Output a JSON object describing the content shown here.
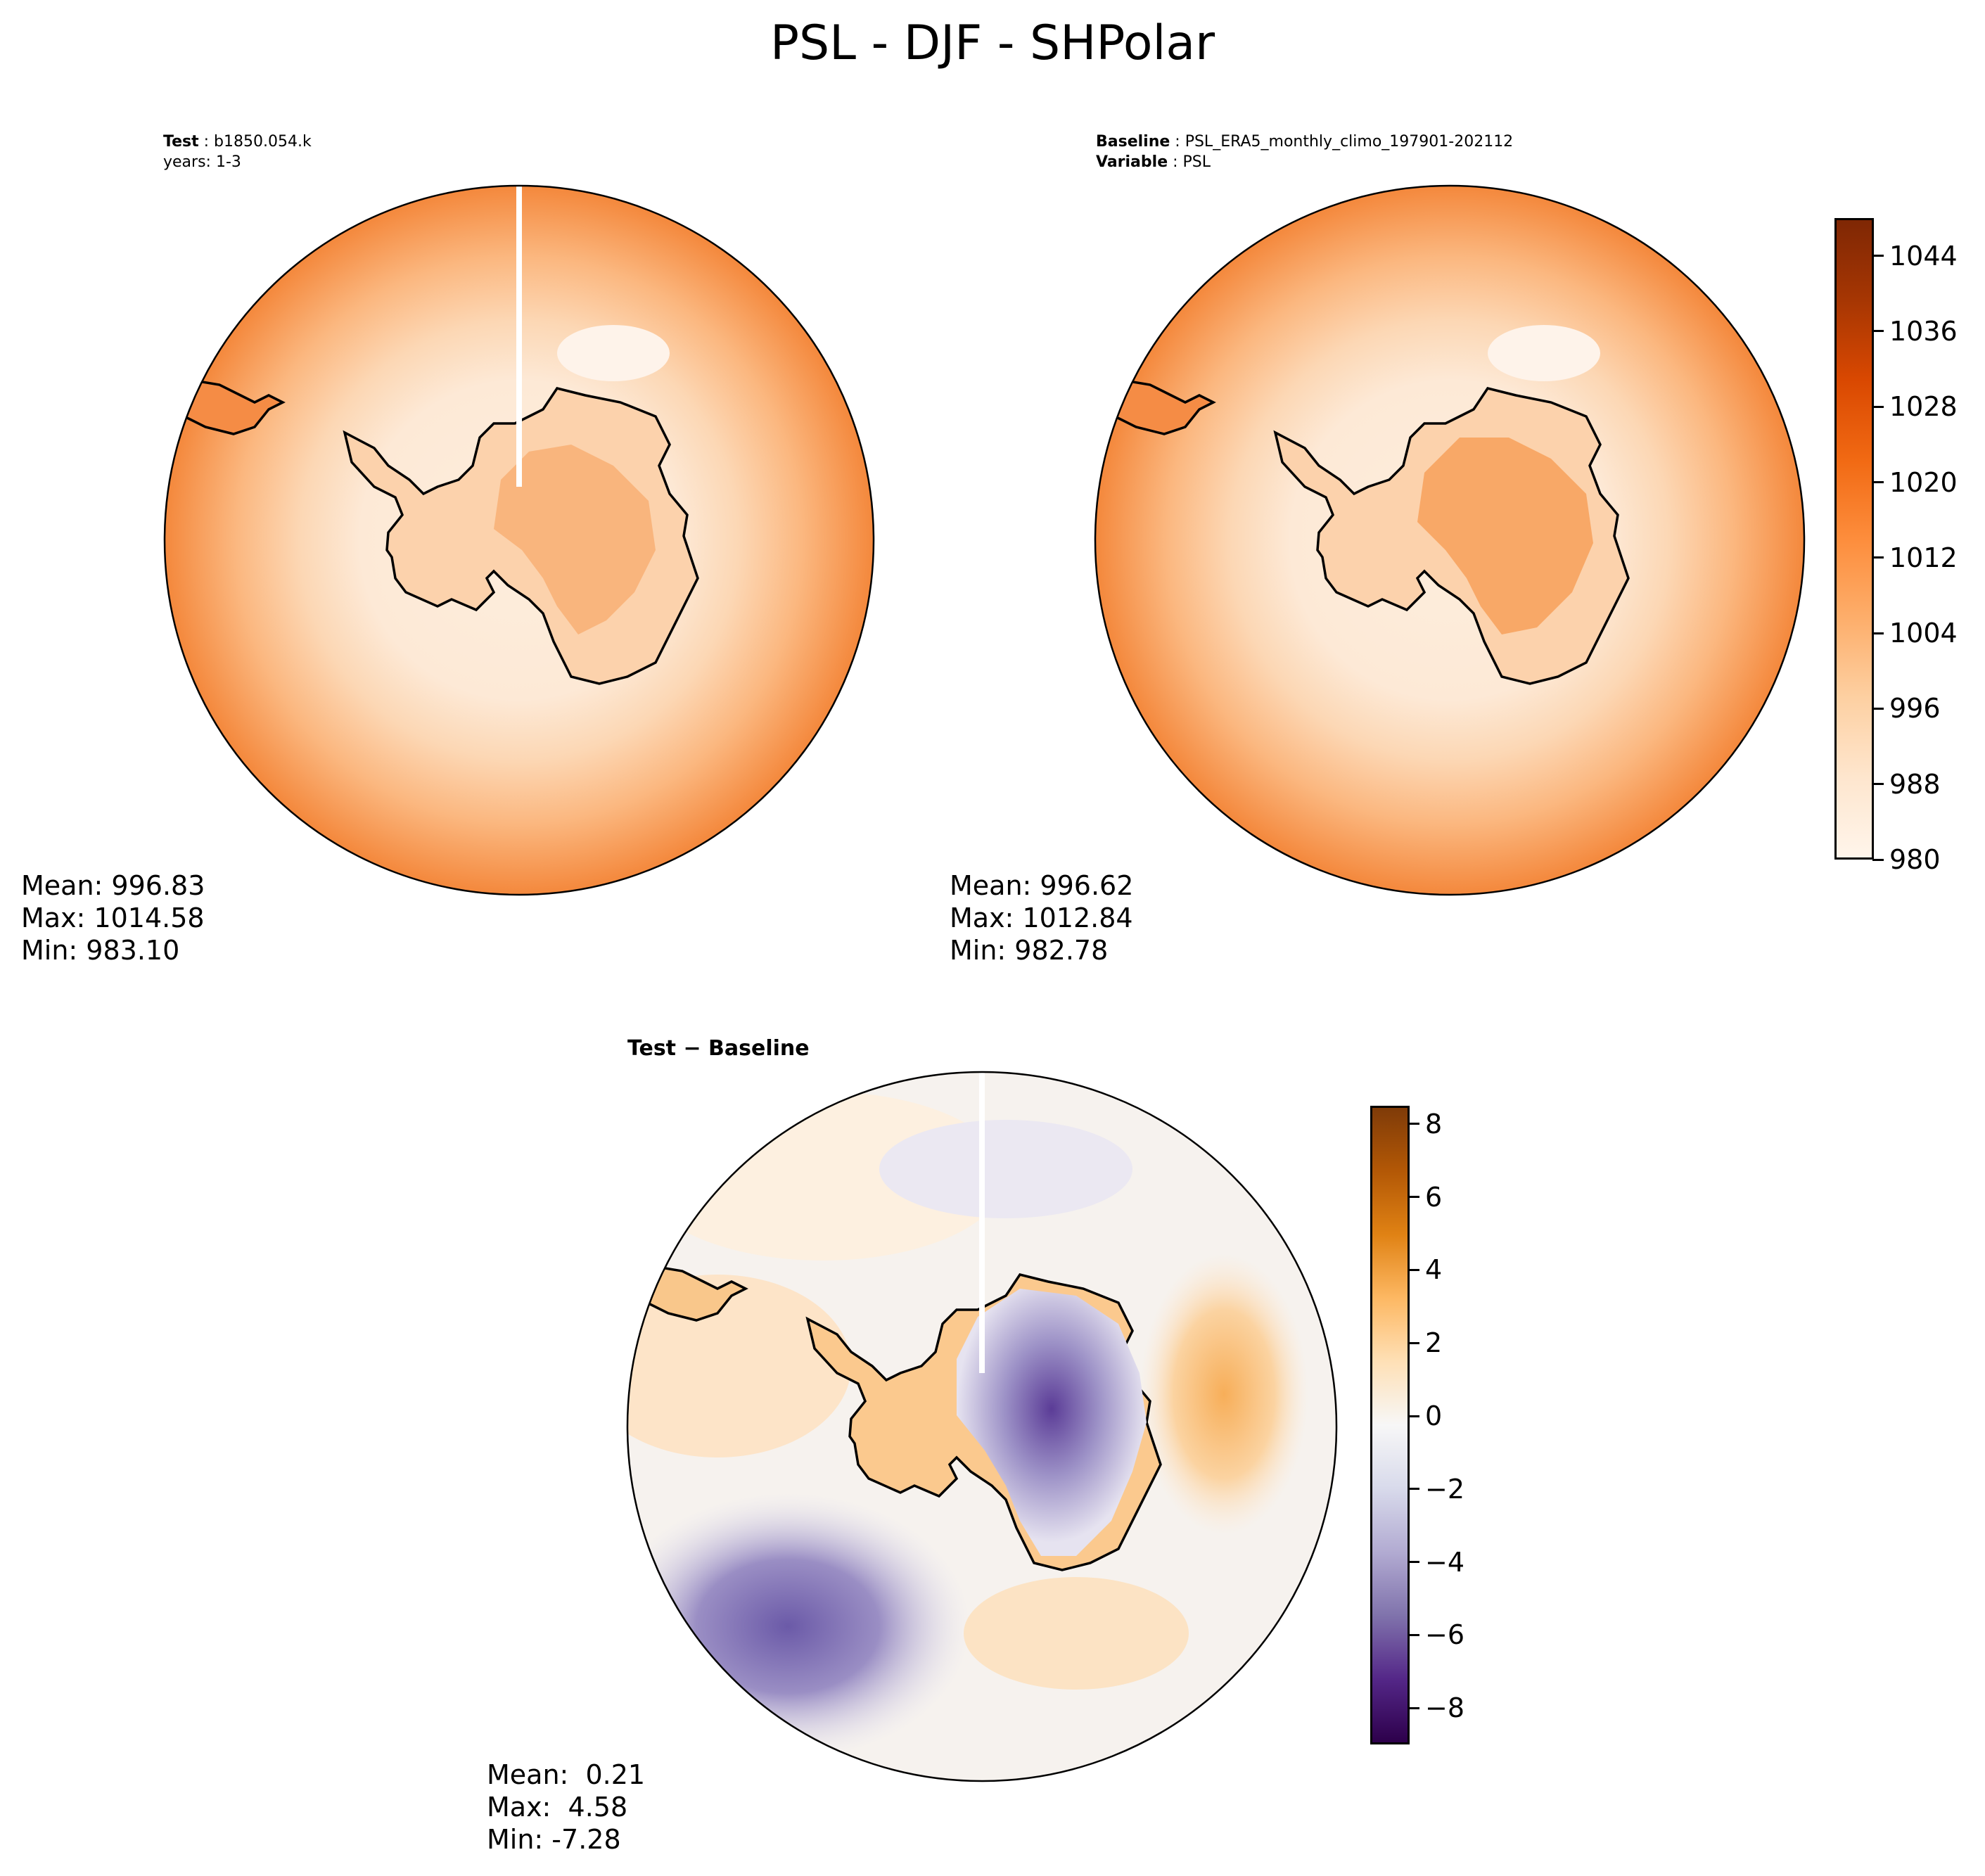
{
  "figure": {
    "title": "PSL - DJF - SHPolar"
  },
  "panels": {
    "test": {
      "header_label": "Test",
      "header_value": "b1850.054.k",
      "header_line2": "years: 1-3",
      "stats": {
        "mean": "Mean: 996.83",
        "max": "Max: 1014.58",
        "min": "Min: 983.10"
      }
    },
    "baseline": {
      "header_label": "Baseline",
      "header_value": "PSL_ERA5_monthly_climo_197901-202112",
      "header_label2": "Variable",
      "header_value2": "PSL",
      "stats": {
        "mean": "Mean: 996.62",
        "max": "Max: 1012.84",
        "min": "Min: 982.78"
      }
    },
    "difference": {
      "title": "Test − Baseline",
      "stats": {
        "mean": "Mean:  0.21",
        "max": "Max:  4.58",
        "min": "Min: -7.28"
      }
    }
  },
  "colorbars": {
    "absolute": {
      "ticks": [
        "1044",
        "1036",
        "1028",
        "1020",
        "1012",
        "1004",
        "996",
        "988",
        "980"
      ],
      "tick_values": [
        1044,
        1036,
        1028,
        1020,
        1012,
        1004,
        996,
        988,
        980
      ],
      "range": [
        980,
        1048
      ],
      "colormap": "Oranges",
      "colors": [
        "#fff5eb",
        "#fee6ce",
        "#fdd0a2",
        "#fdae6b",
        "#fd8d3c",
        "#f16913",
        "#d94801",
        "#a63603",
        "#7f2704"
      ]
    },
    "difference": {
      "ticks": [
        "8",
        "6",
        "4",
        "2",
        "0",
        "−2",
        "−4",
        "−6",
        "−8"
      ],
      "tick_values": [
        8,
        6,
        4,
        2,
        0,
        -2,
        -4,
        -6,
        -8
      ],
      "range": [
        -9,
        8.5
      ],
      "colormap": "PuOr_r",
      "colors": [
        "#2d004b",
        "#542788",
        "#8073ac",
        "#b2abd2",
        "#d8daeb",
        "#f7f7f7",
        "#fee0b6",
        "#fdb863",
        "#e08214",
        "#b35806",
        "#7f3b08"
      ]
    }
  },
  "colors": {
    "land_outline": "#000000",
    "ocean_edge": "#f4883c",
    "ocean_mid": "#fcc693",
    "ocean_center": "#fdeedd",
    "continent_interior": "#f9b57d",
    "diff_neg": "#7a6db0",
    "diff_pos": "#f8b66a",
    "diff_zero": "#f4f2f5"
  }
}
